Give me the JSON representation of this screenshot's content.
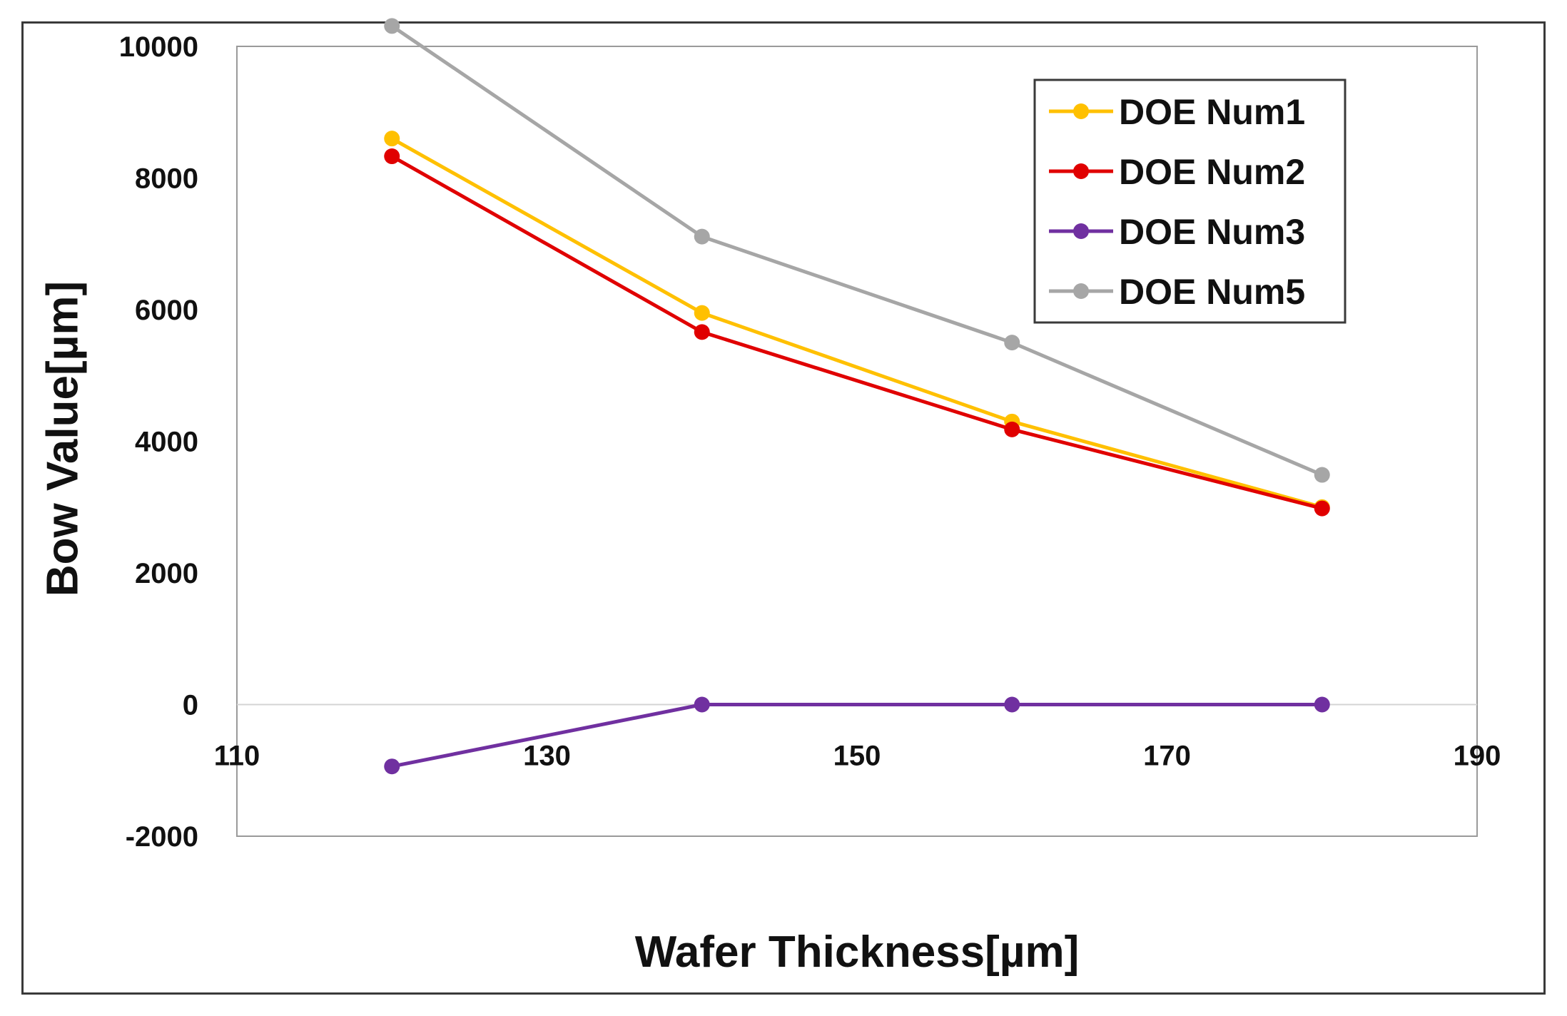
{
  "chart_data": {
    "type": "line",
    "title": "",
    "xlabel": "Wafer Thickness[µm]",
    "ylabel": "Bow Value[µm]",
    "xlim": [
      110,
      190
    ],
    "ylim": [
      -2000,
      10000
    ],
    "xticks": [
      110,
      130,
      150,
      170,
      190
    ],
    "yticks": [
      -2000,
      0,
      2000,
      4000,
      6000,
      8000,
      10000
    ],
    "x": [
      120,
      140,
      160,
      180
    ],
    "grid": "horizontal zero line only",
    "legend_position": "top-right",
    "series": [
      {
        "name": "DOE Num1",
        "color": "#FFC000",
        "values": [
          8600,
          5950,
          4300,
          3000
        ]
      },
      {
        "name": "DOE Num2",
        "color": "#E00000",
        "values": [
          8330,
          5660,
          4180,
          2980
        ]
      },
      {
        "name": "DOE Num3",
        "color": "#7030A0",
        "values": [
          -940,
          0,
          0,
          0
        ]
      },
      {
        "name": "DOE Num5",
        "color": "#A6A6A6",
        "values": [
          10310,
          7110,
          5500,
          3490
        ]
      }
    ]
  }
}
